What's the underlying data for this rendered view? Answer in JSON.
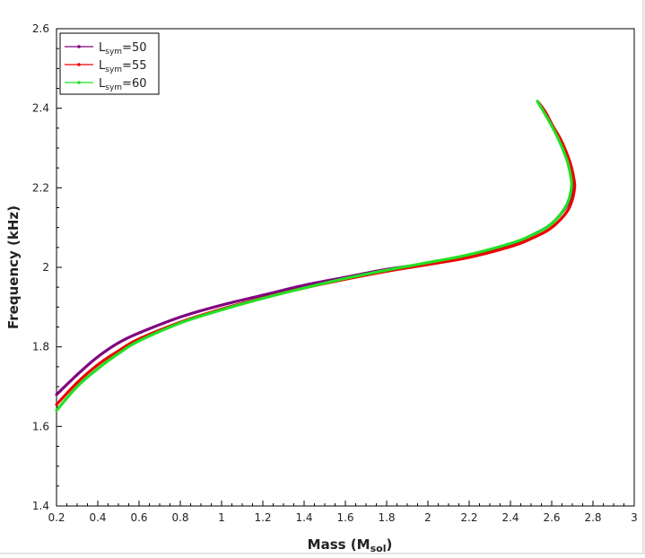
{
  "colors": {
    "purple": "#800080",
    "red": "#ee0000",
    "green": "#22e022",
    "axis": "#000000",
    "background": "#ffffff"
  },
  "chart_data": {
    "type": "line",
    "title": "",
    "xlabel": {
      "text": "Mass (M",
      "sub": "sol",
      "close": ")"
    },
    "ylabel": "Frequency (kHz)",
    "xlim": [
      0.2,
      3.0
    ],
    "ylim": [
      1.4,
      2.6
    ],
    "xticks": [
      "0.2",
      "0.4",
      "0.6",
      "0.8",
      "1",
      "1.2",
      "1.4",
      "1.6",
      "1.8",
      "2",
      "2.2",
      "2.4",
      "2.6",
      "2.8",
      "3"
    ],
    "yticks": [
      "1.4",
      "1.6",
      "1.8",
      "2",
      "2.2",
      "2.4",
      "2.6"
    ],
    "grid": false,
    "legend_position": "top-left",
    "series": [
      {
        "name": "Lsym=50",
        "label_main": "L",
        "label_sub": "sym",
        "label_tail": "=50",
        "color": "#800080",
        "points": [
          [
            0.2,
            1.68
          ],
          [
            0.3,
            1.73
          ],
          [
            0.4,
            1.775
          ],
          [
            0.5,
            1.81
          ],
          [
            0.6,
            1.835
          ],
          [
            0.8,
            1.875
          ],
          [
            1.0,
            1.905
          ],
          [
            1.2,
            1.93
          ],
          [
            1.4,
            1.955
          ],
          [
            1.6,
            1.975
          ],
          [
            1.8,
            1.995
          ],
          [
            2.0,
            2.01
          ],
          [
            2.2,
            2.03
          ],
          [
            2.4,
            2.058
          ],
          [
            2.5,
            2.08
          ],
          [
            2.6,
            2.11
          ],
          [
            2.68,
            2.16
          ],
          [
            2.705,
            2.2
          ],
          [
            2.7,
            2.23
          ],
          [
            2.68,
            2.27
          ],
          [
            2.64,
            2.32
          ],
          [
            2.6,
            2.36
          ],
          [
            2.57,
            2.39
          ],
          [
            2.535,
            2.415
          ]
        ]
      },
      {
        "name": "Lsym=55",
        "label_main": "L",
        "label_sub": "sym",
        "label_tail": "=55",
        "color": "#ee0000",
        "points": [
          [
            0.2,
            1.655
          ],
          [
            0.3,
            1.71
          ],
          [
            0.4,
            1.755
          ],
          [
            0.5,
            1.79
          ],
          [
            0.6,
            1.82
          ],
          [
            0.8,
            1.862
          ],
          [
            1.0,
            1.895
          ],
          [
            1.2,
            1.923
          ],
          [
            1.4,
            1.948
          ],
          [
            1.6,
            1.97
          ],
          [
            1.8,
            1.99
          ],
          [
            2.0,
            2.007
          ],
          [
            2.2,
            2.025
          ],
          [
            2.4,
            2.052
          ],
          [
            2.5,
            2.072
          ],
          [
            2.6,
            2.1
          ],
          [
            2.68,
            2.145
          ],
          [
            2.71,
            2.195
          ],
          [
            2.705,
            2.23
          ],
          [
            2.685,
            2.27
          ],
          [
            2.645,
            2.32
          ],
          [
            2.6,
            2.36
          ],
          [
            2.57,
            2.39
          ],
          [
            2.535,
            2.415
          ]
        ]
      },
      {
        "name": "Lsym=60",
        "label_main": "L",
        "label_sub": "sym",
        "label_tail": "=60",
        "color": "#22e022",
        "points": [
          [
            0.2,
            1.64
          ],
          [
            0.3,
            1.7
          ],
          [
            0.4,
            1.745
          ],
          [
            0.5,
            1.783
          ],
          [
            0.6,
            1.815
          ],
          [
            0.8,
            1.86
          ],
          [
            1.0,
            1.893
          ],
          [
            1.2,
            1.922
          ],
          [
            1.4,
            1.948
          ],
          [
            1.6,
            1.972
          ],
          [
            1.8,
            1.993
          ],
          [
            2.0,
            2.012
          ],
          [
            2.2,
            2.032
          ],
          [
            2.4,
            2.06
          ],
          [
            2.5,
            2.08
          ],
          [
            2.6,
            2.11
          ],
          [
            2.67,
            2.155
          ],
          [
            2.695,
            2.2
          ],
          [
            2.69,
            2.235
          ],
          [
            2.67,
            2.275
          ],
          [
            2.63,
            2.325
          ],
          [
            2.59,
            2.365
          ],
          [
            2.56,
            2.392
          ],
          [
            2.53,
            2.418
          ]
        ]
      }
    ]
  }
}
